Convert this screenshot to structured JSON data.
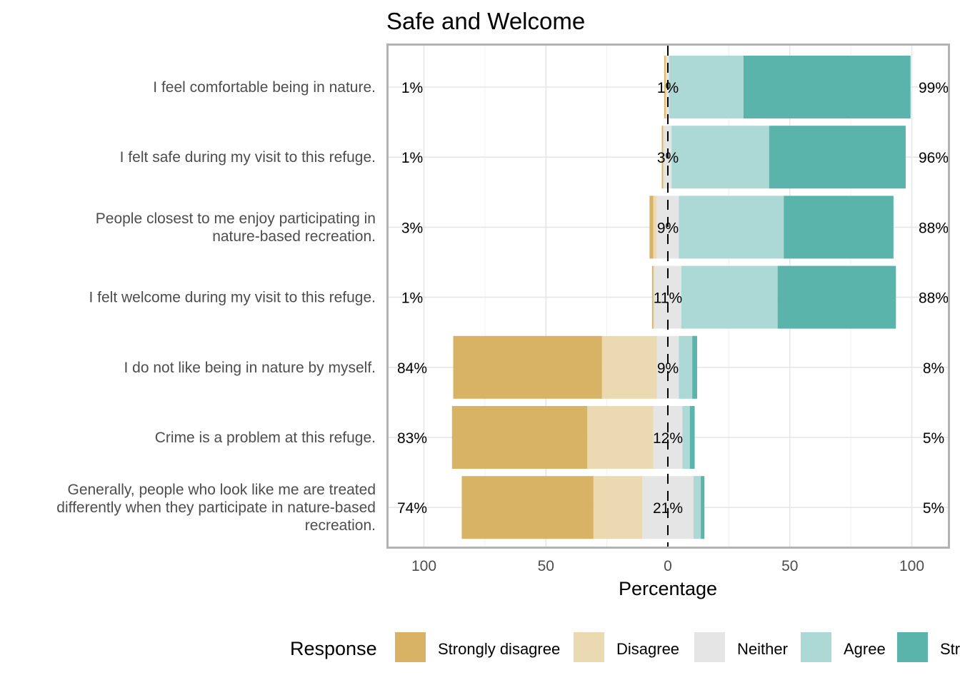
{
  "chart_data": {
    "type": "bar",
    "orientation": "horizontal",
    "stacking": "diverging",
    "title": "Safe and Welcome",
    "xlabel": "Percentage",
    "xlim": [
      -100,
      100
    ],
    "x_ticks": [
      -100,
      -50,
      0,
      50,
      100
    ],
    "x_tick_labels": [
      "100",
      "50",
      "0",
      "50",
      "100"
    ],
    "grid": true,
    "legend_title": "Response",
    "legend_position": "bottom",
    "categories": [
      {
        "label_lines": [
          "I feel comfortable being in nature."
        ],
        "low_label": "1%",
        "neutral_label": "1%",
        "high_label": "99%"
      },
      {
        "label_lines": [
          "I felt safe during my visit to this refuge."
        ],
        "low_label": "1%",
        "neutral_label": "3%",
        "high_label": "96%"
      },
      {
        "label_lines": [
          "People closest to me enjoy participating in",
          "nature-based recreation."
        ],
        "low_label": "3%",
        "neutral_label": "9%",
        "high_label": "88%"
      },
      {
        "label_lines": [
          "I felt welcome during my visit to this refuge."
        ],
        "low_label": "1%",
        "neutral_label": "11%",
        "high_label": "88%"
      },
      {
        "label_lines": [
          "I do not like being in nature by myself."
        ],
        "low_label": "84%",
        "neutral_label": "9%",
        "high_label": "8%"
      },
      {
        "label_lines": [
          "Crime is a problem at this refuge."
        ],
        "low_label": "83%",
        "neutral_label": "12%",
        "high_label": "5%"
      },
      {
        "label_lines": [
          "Generally, people who look like me are treated",
          "differently when they participate in nature-based",
          "recreation."
        ],
        "low_label": "74%",
        "neutral_label": "21%",
        "high_label": "5%"
      }
    ],
    "series": [
      {
        "name": "Strongly disagree",
        "color": "#d8b365",
        "values": [
          0.5,
          0.5,
          1.5,
          0.5,
          61,
          55.5,
          54
        ]
      },
      {
        "name": "Disagree",
        "color": "#ebdab1",
        "values": [
          0.5,
          0.5,
          1.5,
          0.5,
          22.5,
          27,
          20
        ]
      },
      {
        "name": "Neither",
        "color": "#e5e5e5",
        "values": [
          1,
          3,
          9,
          11,
          9,
          12,
          21
        ]
      },
      {
        "name": "Agree",
        "color": "#acd8d5",
        "values": [
          30.5,
          40,
          43,
          39.5,
          5.5,
          3,
          3
        ]
      },
      {
        "name": "Strongly agree",
        "color": "#5ab4ac",
        "values": [
          68.5,
          56,
          45,
          48.5,
          2,
          2,
          1.5
        ]
      }
    ]
  }
}
